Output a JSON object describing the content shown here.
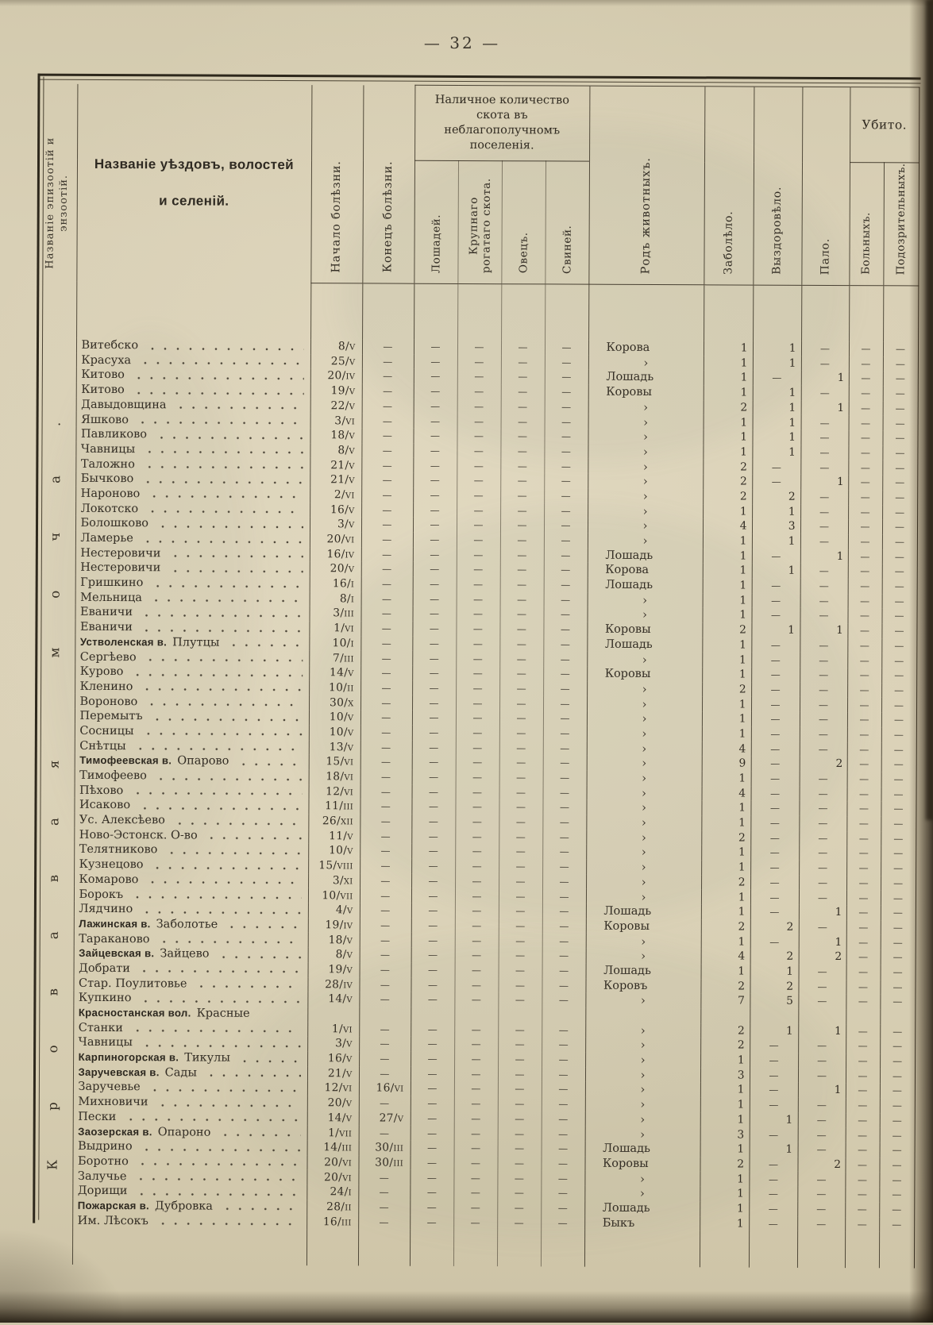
{
  "page": {
    "number_display": "— 32 —"
  },
  "table": {
    "dash": "—",
    "ditto": "›",
    "left_column_header": "Названіе эпизоотій и энзоотій.",
    "left_column_value": "Кровавая моча.",
    "name_header_line1": "Названіе уѣздовъ, волостей",
    "name_header_line2": "и селеній.",
    "col_start": "Начало болѣзни.",
    "col_end": "Конецъ болѣзни.",
    "livestock_group": "Наличное количество скота въ неблагополучномъ поселенія.",
    "livestock_cols": [
      "Лошадей.",
      "Крупнаго рогатаго скота.",
      "Овецъ.",
      "Свиней."
    ],
    "col_kind": "Родъ животныхъ.",
    "col_sick": "Заболѣло.",
    "col_recovered": "Выздоровѣло.",
    "col_died": "Пало.",
    "killed_group": "Убито.",
    "killed_cols": [
      "Больныхъ.",
      "Подозрительныхъ."
    ]
  },
  "rows": [
    {
      "name": "Витебско",
      "start": "8/v",
      "kind": "Корова",
      "sick": "1",
      "rec": "1"
    },
    {
      "name": "Красуха",
      "start": "25/v",
      "kind": "›",
      "sick": "1",
      "rec": "1"
    },
    {
      "name": "Китово",
      "start": "20/iv",
      "kind": "Лошадь",
      "sick": "1",
      "died": "1"
    },
    {
      "name": "Китово",
      "start": "19/v",
      "kind": "Коровы",
      "sick": "1",
      "rec": "1"
    },
    {
      "name": "Давыдовщина",
      "start": "22/v",
      "kind": "›",
      "sick": "2",
      "rec": "1",
      "died": "1"
    },
    {
      "name": "Яшково",
      "start": "3/vi",
      "kind": "›",
      "sick": "1",
      "rec": "1"
    },
    {
      "name": "Павликово",
      "start": "18/v",
      "kind": "›",
      "sick": "1",
      "rec": "1"
    },
    {
      "name": "Чавницы",
      "start": "8/v",
      "kind": "›",
      "sick": "1",
      "rec": "1"
    },
    {
      "name": "Таложно",
      "start": "21/v",
      "kind": "›",
      "sick": "2"
    },
    {
      "name": "Бычково",
      "start": "21/v",
      "kind": "›",
      "sick": "2",
      "died": "1"
    },
    {
      "name": "Нароново",
      "start": "2/vi",
      "kind": "›",
      "sick": "2",
      "rec": "2"
    },
    {
      "name": "Локотско",
      "start": "16/v",
      "kind": "›",
      "sick": "1",
      "rec": "1"
    },
    {
      "name": "Болошково",
      "start": "3/v",
      "kind": "›",
      "sick": "4",
      "rec": "3"
    },
    {
      "name": "Ламерье",
      "start": "20/vi",
      "kind": "›",
      "sick": "1",
      "rec": "1"
    },
    {
      "name": "Нестеровичи",
      "start": "16/iv",
      "kind": "Лошадь",
      "sick": "1",
      "died": "1"
    },
    {
      "name": "Нестеровичи",
      "start": "20/v",
      "kind": "Корова",
      "sick": "1",
      "rec": "1"
    },
    {
      "name": "Гришкино",
      "start": "16/i",
      "kind": "Лошадь",
      "sick": "1"
    },
    {
      "name": "Мельница",
      "start": "8/i",
      "kind": "›",
      "sick": "1"
    },
    {
      "name": "Еваничи",
      "start": "3/iii",
      "kind": "›",
      "sick": "1"
    },
    {
      "name": "Еваничи",
      "start": "1/vi",
      "kind": "Коровы",
      "sick": "2",
      "rec": "1",
      "died": "1"
    },
    {
      "volost": "Устволенская в.",
      "name": "Плутцы",
      "start": "10/i",
      "kind": "Лошадь",
      "sick": "1"
    },
    {
      "name": "Сергѣево",
      "start": "7/iii",
      "kind": "›",
      "sick": "1"
    },
    {
      "name": "Курово",
      "start": "14/v",
      "kind": "Коровы",
      "sick": "1"
    },
    {
      "name": "Кленино",
      "start": "10/ii",
      "kind": "›",
      "sick": "2"
    },
    {
      "name": "Вороново",
      "start": "30/x",
      "kind": "›",
      "sick": "1"
    },
    {
      "name": "Перемытъ",
      "start": "10/v",
      "kind": "›",
      "sick": "1"
    },
    {
      "name": "Сосницы",
      "start": "10/v",
      "kind": "›",
      "sick": "1"
    },
    {
      "name": "Снѣтцы",
      "start": "13/v",
      "kind": "›",
      "sick": "4"
    },
    {
      "volost": "Тимофеевская в.",
      "name": "Опарово",
      "start": "15/vi",
      "kind": "›",
      "sick": "9",
      "died": "2"
    },
    {
      "name": "Тимофеево",
      "start": "18/vi",
      "kind": "›",
      "sick": "1"
    },
    {
      "name": "Пѣхово",
      "start": "12/vi",
      "kind": "›",
      "sick": "4"
    },
    {
      "name": "Исаково",
      "start": "11/iii",
      "kind": "›",
      "sick": "1"
    },
    {
      "name": "Ус. Алексѣево",
      "start": "26/xii",
      "kind": "›",
      "sick": "1"
    },
    {
      "name": "Ново-Эстонск. О-во",
      "start": "11/v",
      "kind": "›",
      "sick": "2"
    },
    {
      "name": "Телятниково",
      "start": "10/v",
      "kind": "›",
      "sick": "1"
    },
    {
      "name": "Кузнецово",
      "start": "15/viii",
      "kind": "›",
      "sick": "1"
    },
    {
      "name": "Комарово",
      "start": "3/xi",
      "kind": "›",
      "sick": "2"
    },
    {
      "name": "Борокъ",
      "start": "10/vii",
      "kind": "›",
      "sick": "1"
    },
    {
      "name": "Лядчино",
      "start": "4/v",
      "kind": "Лошадь",
      "sick": "1",
      "died": "1"
    },
    {
      "volost": "Лажинская в.",
      "name": "Заболотье",
      "start": "19/iv",
      "kind": "Коровы",
      "sick": "2",
      "rec": "2"
    },
    {
      "name": "Тараканово",
      "start": "18/v",
      "kind": "›",
      "sick": "1",
      "died": "1"
    },
    {
      "volost": "Зайцевская в.",
      "name": "Зайцево",
      "start": "8/v",
      "kind": "›",
      "sick": "4",
      "rec": "2",
      "died": "2"
    },
    {
      "name": "Добрати",
      "start": "19/v",
      "kind": "Лошадь",
      "sick": "1",
      "rec": "1"
    },
    {
      "name": "Стар. Поулитовье",
      "start": "28/iv",
      "kind": "Коровъ",
      "sick": "2",
      "rec": "2"
    },
    {
      "name": "Купкино",
      "start": "14/v",
      "kind": "›",
      "sick": "7",
      "rec": "5"
    },
    {
      "volost": "Красностанская вол.",
      "name": "Красные",
      "name_only": true
    },
    {
      "name": "Станки",
      "ind": 2,
      "start": "1/vi",
      "kind": "›",
      "sick": "2",
      "rec": "1",
      "died": "1"
    },
    {
      "name": "Чавницы",
      "start": "3/v",
      "kind": "›",
      "sick": "2"
    },
    {
      "volost": "Карпиногорская в.",
      "name": "Тикулы",
      "start": "16/v",
      "kind": "›",
      "sick": "1"
    },
    {
      "volost": "Заручевская в.",
      "name": "Сады",
      "start": "21/v",
      "kind": "›",
      "sick": "3"
    },
    {
      "name": "Заручевье",
      "start": "12/vi",
      "end": "16/vi",
      "kind": "›",
      "sick": "1",
      "died": "1"
    },
    {
      "name": "Михновичи",
      "start": "20/v",
      "kind": "›",
      "sick": "1"
    },
    {
      "name": "Пески",
      "start": "14/v",
      "end": "27/v",
      "kind": "›",
      "sick": "1",
      "rec": "1"
    },
    {
      "volost": "Заозерская в.",
      "name": "Опароно",
      "start": "1/vii",
      "kind": "›",
      "sick": "3"
    },
    {
      "name": "Выдрино",
      "start": "14/iii",
      "end": "30/iii",
      "kind": "Лошадь",
      "sick": "1",
      "rec": "1"
    },
    {
      "name": "Боротно",
      "start": "20/vi",
      "end": "30/iii",
      "kind": "Коровы",
      "sick": "2",
      "died": "2"
    },
    {
      "name": "Залучье",
      "start": "20/vi",
      "kind": "›",
      "sick": "1"
    },
    {
      "name": "Дорищи",
      "start": "24/i",
      "kind": "›",
      "sick": "1"
    },
    {
      "volost": "Пожарская в.",
      "name": "Дубровка",
      "start": "28/ii",
      "kind": "Лошадь",
      "sick": "1"
    },
    {
      "name": "Им. Лѣсокъ",
      "start": "16/iii",
      "kind": "Быкъ",
      "sick": "1"
    }
  ]
}
